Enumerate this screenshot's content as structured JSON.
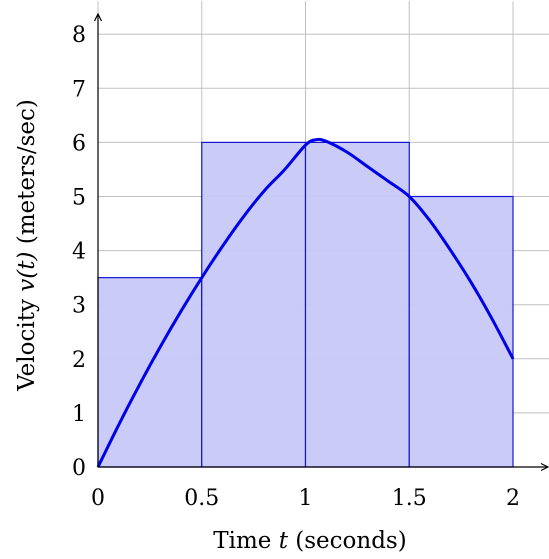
{
  "chart_data": {
    "type": "area",
    "xlabel": "Time t (seconds)",
    "ylabel": "Velocity v(t) (meters/sec)",
    "xlim": [
      0,
      2.2
    ],
    "ylim": [
      0,
      8.5
    ],
    "x_ticks": [
      0,
      0.5,
      1,
      1.5,
      2
    ],
    "x_tick_labels": [
      "0",
      "0.5",
      "1",
      "1.5",
      "2"
    ],
    "y_ticks": [
      0,
      1,
      2,
      3,
      4,
      5,
      6,
      7,
      8
    ],
    "y_tick_labels": [
      "0",
      "1",
      "2",
      "3",
      "4",
      "5",
      "6",
      "7",
      "8"
    ],
    "grid": true,
    "legend": "none",
    "rectangles": [
      {
        "x0": 0,
        "x1": 0.5,
        "height": 3.5
      },
      {
        "x0": 0.5,
        "x1": 1,
        "height": 6
      },
      {
        "x0": 1,
        "x1": 1.5,
        "height": 6
      },
      {
        "x0": 1.5,
        "x1": 2,
        "height": 5
      }
    ],
    "curve": {
      "x": [
        0,
        0.1,
        0.2,
        0.3,
        0.4,
        0.5,
        0.6,
        0.7,
        0.8,
        0.9,
        1.0,
        1.05,
        1.1,
        1.2,
        1.3,
        1.4,
        1.5,
        1.6,
        1.7,
        1.8,
        1.9,
        2.0
      ],
      "y": [
        0,
        0.78,
        1.52,
        2.22,
        2.88,
        3.5,
        4.08,
        4.62,
        5.1,
        5.5,
        5.95,
        6.05,
        6.02,
        5.82,
        5.55,
        5.28,
        5.0,
        4.55,
        4.0,
        3.4,
        2.73,
        2.0
      ]
    },
    "colors": {
      "fill": "#c8c8f8",
      "stroke": "#1515d4",
      "curve": "#0000e6",
      "grid": "#c0c0c0"
    }
  }
}
